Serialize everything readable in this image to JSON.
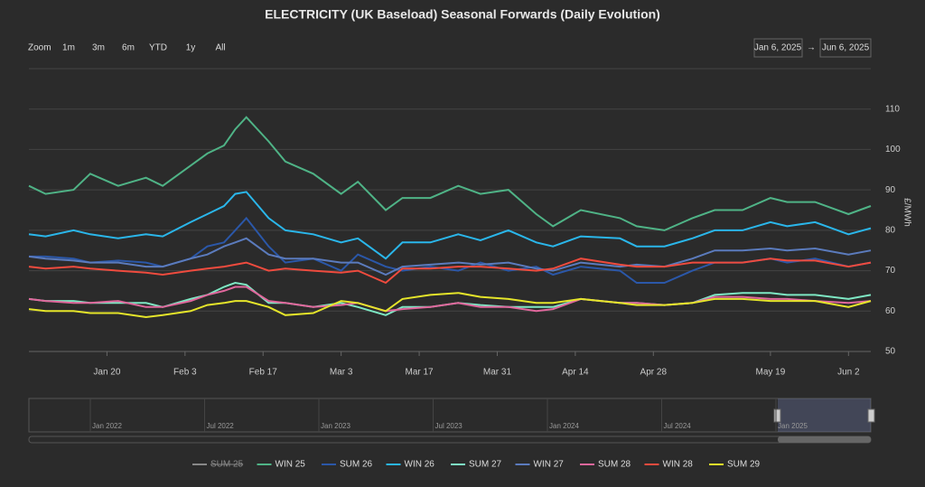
{
  "chart_data": {
    "type": "line",
    "title": "ELECTRICITY (UK Baseload) Seasonal Forwards (Daily Evolution)",
    "range_selector": {
      "zoom_label": "Zoom",
      "buttons": [
        "1m",
        "3m",
        "6m",
        "YTD",
        "1y",
        "All"
      ],
      "from": "Jan 6, 2025",
      "separator": "→",
      "to": "Jun 6, 2025"
    },
    "y_axis_label": "£/MWh",
    "xlim": [
      "2025-01-06",
      "2025-06-06"
    ],
    "xticks": [
      {
        "value": "2025-01-20",
        "label": "Jan 20"
      },
      {
        "value": "2025-02-03",
        "label": "Feb 3"
      },
      {
        "value": "2025-02-17",
        "label": "Feb 17"
      },
      {
        "value": "2025-03-03",
        "label": "Mar 3"
      },
      {
        "value": "2025-03-17",
        "label": "Mar 17"
      },
      {
        "value": "2025-03-31",
        "label": "Mar 31"
      },
      {
        "value": "2025-04-14",
        "label": "Apr 14"
      },
      {
        "value": "2025-04-28",
        "label": "Apr 28"
      },
      {
        "value": "2025-05-19",
        "label": "May 19"
      },
      {
        "value": "2025-06-02",
        "label": "Jun 2"
      }
    ],
    "ylim": [
      50,
      120
    ],
    "yticks": [
      50,
      60,
      70,
      80,
      90,
      100,
      110
    ],
    "grid": true,
    "x": [
      "2025-01-06",
      "2025-01-09",
      "2025-01-14",
      "2025-01-17",
      "2025-01-22",
      "2025-01-27",
      "2025-01-30",
      "2025-02-04",
      "2025-02-07",
      "2025-02-10",
      "2025-02-12",
      "2025-02-14",
      "2025-02-18",
      "2025-02-21",
      "2025-02-26",
      "2025-03-03",
      "2025-03-06",
      "2025-03-11",
      "2025-03-14",
      "2025-03-19",
      "2025-03-24",
      "2025-03-28",
      "2025-04-02",
      "2025-04-07",
      "2025-04-10",
      "2025-04-15",
      "2025-04-22",
      "2025-04-25",
      "2025-04-30",
      "2025-05-05",
      "2025-05-09",
      "2025-05-14",
      "2025-05-19",
      "2025-05-22",
      "2025-05-27",
      "2025-06-02",
      "2025-06-06"
    ],
    "series": [
      {
        "name": "SUM 25",
        "color": "#aaaaaa",
        "hidden": true,
        "values": [
          null,
          null,
          null,
          null,
          null,
          null,
          null,
          null,
          null,
          null,
          null,
          null,
          null,
          null,
          null,
          null,
          null,
          null,
          null,
          null,
          null,
          null,
          null,
          null,
          null,
          null,
          null,
          null,
          null,
          null,
          null,
          null,
          null,
          null,
          null,
          null,
          null
        ]
      },
      {
        "name": "WIN 25",
        "color": "#4fb386",
        "values": [
          91,
          89,
          90,
          94,
          91,
          93,
          91,
          96,
          99,
          101,
          105,
          108,
          102,
          97,
          94,
          89,
          92,
          85,
          88,
          88,
          91,
          89,
          90,
          84,
          81,
          85,
          83,
          81,
          80,
          83,
          85,
          85,
          88,
          87,
          87,
          84,
          86
        ]
      },
      {
        "name": "SUM 26",
        "color": "#2b57a8",
        "values": [
          73.5,
          73.5,
          73,
          72,
          72.5,
          72,
          71,
          73,
          76,
          77,
          80,
          83,
          76,
          72,
          73,
          70,
          74,
          71,
          70,
          71,
          70,
          72,
          70,
          71,
          69,
          71,
          70,
          67,
          67,
          70,
          72,
          72,
          73,
          72,
          73,
          71,
          72
        ]
      },
      {
        "name": "WIN 26",
        "color": "#2ab6ea",
        "values": [
          79,
          78.5,
          80,
          79,
          78,
          79,
          78.5,
          82,
          84,
          86,
          89,
          89.5,
          83,
          80,
          79,
          77,
          78,
          73,
          77,
          77,
          79,
          77.5,
          80,
          77,
          76,
          78.5,
          78,
          76,
          76,
          78,
          80,
          80,
          82,
          81,
          82,
          79,
          80.5
        ]
      },
      {
        "name": "SUM 27",
        "color": "#7ee8c4",
        "values": [
          63,
          62.5,
          62.5,
          62,
          62,
          62,
          61,
          63,
          64,
          66,
          67,
          66.5,
          62,
          62,
          61,
          62,
          61,
          59,
          61,
          61,
          62,
          61.5,
          61,
          61,
          61,
          63,
          62,
          62,
          61.5,
          62,
          64,
          64.5,
          64.5,
          64,
          64,
          63,
          64
        ]
      },
      {
        "name": "WIN 27",
        "color": "#5b7bbd",
        "values": [
          73.5,
          73,
          72.5,
          72,
          72,
          71,
          71,
          73,
          74,
          76,
          77,
          78,
          74,
          73,
          73,
          72,
          72,
          69,
          71,
          71.5,
          72,
          71.5,
          72,
          70.5,
          70,
          72,
          71,
          71.5,
          71,
          73,
          75,
          75,
          75.5,
          75,
          75.5,
          74,
          75
        ]
      },
      {
        "name": "SUM 28",
        "color": "#e0679c",
        "values": [
          63,
          62.5,
          62,
          62,
          62.5,
          61,
          61,
          62.5,
          64,
          65,
          66,
          66,
          62.5,
          62,
          61,
          61.5,
          62,
          60,
          60.5,
          61,
          62,
          61,
          61,
          60,
          60.5,
          63,
          62,
          62,
          61.5,
          62,
          63.5,
          63.5,
          63,
          63,
          62.5,
          62,
          62.5
        ]
      },
      {
        "name": "WIN 28",
        "color": "#ef4b3e",
        "values": [
          71,
          70.5,
          71,
          70.5,
          70,
          69.5,
          69,
          70,
          70.5,
          71,
          71.5,
          72,
          70,
          70.5,
          70,
          69.5,
          70,
          67,
          70.5,
          70.5,
          71,
          71,
          70.5,
          70,
          70.5,
          73,
          71.5,
          71,
          71,
          72,
          72,
          72,
          73,
          72.5,
          72.5,
          71,
          72
        ]
      },
      {
        "name": "SUM 29",
        "color": "#e5e52a",
        "values": [
          60.5,
          60,
          60,
          59.5,
          59.5,
          58.5,
          59,
          60,
          61.5,
          62,
          62.5,
          62.5,
          61,
          59,
          59.5,
          62.5,
          62,
          60,
          63,
          64,
          64.5,
          63.5,
          63,
          62,
          62,
          63,
          62,
          61.5,
          61.5,
          62,
          63,
          63,
          62.5,
          62.5,
          62.5,
          61,
          62.5
        ]
      }
    ],
    "navigator": {
      "labels": [
        "Jan 2022",
        "Jul 2022",
        "Jan 2023",
        "Jul 2023",
        "Jan 2024",
        "Jul 2024",
        "Jan 2025"
      ]
    }
  }
}
